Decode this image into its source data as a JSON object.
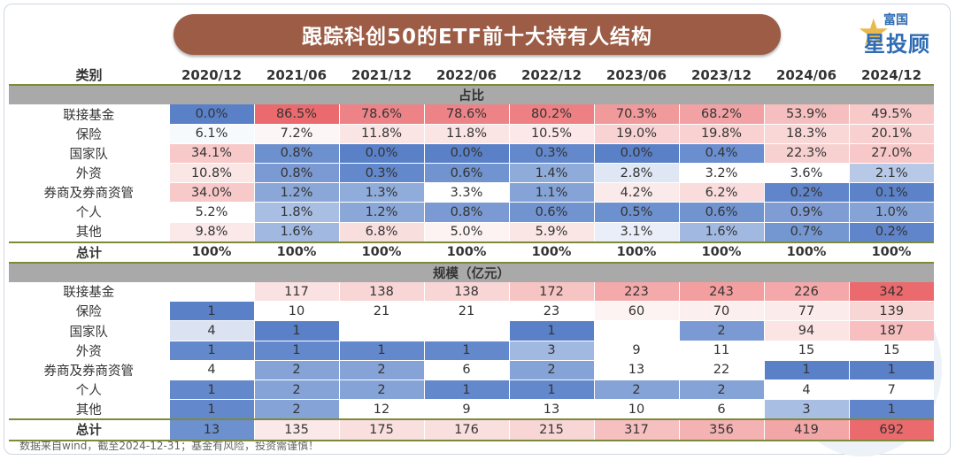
{
  "title": "跟踪科创50的ETF前十大持有人结构",
  "logo": {
    "small": "富国",
    "big": "星投顾"
  },
  "header": {
    "category_label": "类别",
    "periods": [
      "2020/12",
      "2021/06",
      "2021/12",
      "2022/06",
      "2022/12",
      "2023/06",
      "2023/12",
      "2024/06",
      "2024/12"
    ]
  },
  "sections": [
    {
      "title": "占比",
      "rows": [
        {
          "label": "联接基金",
          "values": [
            "0.0%",
            "86.5%",
            "78.6%",
            "78.6%",
            "80.2%",
            "70.3%",
            "68.2%",
            "53.9%",
            "49.5%"
          ],
          "colors": [
            "#5a80c8",
            "#ea6a6e",
            "#ee8387",
            "#ee8387",
            "#ee7f83",
            "#f19a9b",
            "#f2a2a4",
            "#f6bfbf",
            "#f8c9c9"
          ]
        },
        {
          "label": "保险",
          "values": [
            "6.1%",
            "7.2%",
            "11.8%",
            "11.8%",
            "10.5%",
            "19.0%",
            "19.8%",
            "18.3%",
            "20.1%"
          ],
          "colors": [
            "#f7fafd",
            "#fdf6f6",
            "#fbe4e4",
            "#fbe4e4",
            "#fce8e8",
            "#f9d3d3",
            "#f9d1d1",
            "#fad7d7",
            "#f9d0d0"
          ]
        },
        {
          "label": "国家队",
          "values": [
            "34.1%",
            "0.8%",
            "0.0%",
            "0.0%",
            "0.3%",
            "0.0%",
            "0.4%",
            "22.3%",
            "27.0%"
          ],
          "colors": [
            "#f8c9c9",
            "#6d90cf",
            "#5a80c8",
            "#5a80c8",
            "#6388cb",
            "#5a80c8",
            "#6a8ecf",
            "#f7d0d0",
            "#f8c8c8"
          ]
        },
        {
          "label": "外资",
          "values": [
            "10.8%",
            "0.8%",
            "0.3%",
            "0.6%",
            "1.4%",
            "2.8%",
            "3.2%",
            "3.6%",
            "2.1%"
          ],
          "colors": [
            "#fbe6e6",
            "#7b9ad3",
            "#6388cb",
            "#7193d0",
            "#8fabd9",
            "#dfe6f4",
            "#ffffff",
            "#ffffff",
            "#b8c9e8"
          ]
        },
        {
          "label": "券商及券商资管",
          "values": [
            "34.0%",
            "1.2%",
            "1.3%",
            "3.3%",
            "1.1%",
            "4.2%",
            "6.2%",
            "0.2%",
            "0.1%"
          ],
          "colors": [
            "#f8c9c9",
            "#8aa7d8",
            "#90acda",
            "#ffffff",
            "#85a3d6",
            "#fbeaea",
            "#fadcdc",
            "#6085ca",
            "#5c83c9"
          ]
        },
        {
          "label": "个人",
          "values": [
            "5.2%",
            "1.8%",
            "1.2%",
            "0.8%",
            "0.6%",
            "0.5%",
            "0.6%",
            "0.9%",
            "1.0%"
          ],
          "colors": [
            "#ffffff",
            "#a9bee3",
            "#8aa7d8",
            "#7b9ad3",
            "#7193d0",
            "#6d90cf",
            "#7193d0",
            "#7f9dd4",
            "#85a3d6"
          ]
        },
        {
          "label": "其他",
          "values": [
            "9.8%",
            "1.6%",
            "6.8%",
            "5.0%",
            "5.9%",
            "3.1%",
            "1.6%",
            "0.7%",
            "0.2%"
          ],
          "colors": [
            "#fbe8e8",
            "#a1b8e0",
            "#f9dede",
            "#fdf3f3",
            "#fbe6e6",
            "#e9eef8",
            "#a1b8e0",
            "#7597d1",
            "#6085ca"
          ]
        }
      ],
      "total": {
        "label": "总计",
        "values": [
          "100%",
          "100%",
          "100%",
          "100%",
          "100%",
          "100%",
          "100%",
          "100%",
          "100%"
        ]
      }
    },
    {
      "title": "规模（亿元）",
      "rows": [
        {
          "label": "联接基金",
          "values": [
            "",
            "117",
            "138",
            "138",
            "172",
            "223",
            "243",
            "226",
            "342"
          ],
          "colors": [
            "#ffffff",
            "#fbe2e2",
            "#f9d6d6",
            "#f9d6d6",
            "#f7c4c4",
            "#f4a9aa",
            "#f39e9f",
            "#f4a8a9",
            "#ea6a6e"
          ]
        },
        {
          "label": "保险",
          "values": [
            "1",
            "10",
            "21",
            "21",
            "23",
            "60",
            "70",
            "77",
            "139"
          ],
          "colors": [
            "#5a80c8",
            "#ffffff",
            "#ffffff",
            "#ffffff",
            "#ffffff",
            "#fdf3f3",
            "#fcefef",
            "#fcebeb",
            "#f9d6d6"
          ]
        },
        {
          "label": "国家队",
          "values": [
            "4",
            "1",
            "",
            "",
            "1",
            "",
            "2",
            "94",
            "187"
          ],
          "colors": [
            "#dbe3f3",
            "#5a80c8",
            "#ffffff",
            "#ffffff",
            "#5a80c8",
            "#ffffff",
            "#7b9ad3",
            "#fbe4e4",
            "#f7bfc0"
          ]
        },
        {
          "label": "外资",
          "values": [
            "1",
            "1",
            "1",
            "1",
            "3",
            "9",
            "11",
            "15",
            "15"
          ],
          "colors": [
            "#6388cb",
            "#6388cb",
            "#6388cb",
            "#6388cb",
            "#a1b8e0",
            "#ffffff",
            "#ffffff",
            "#ffffff",
            "#ffffff"
          ]
        },
        {
          "label": "券商及券商资管",
          "values": [
            "4",
            "2",
            "2",
            "6",
            "2",
            "13",
            "22",
            "1",
            "1"
          ],
          "colors": [
            "#ffffff",
            "#85a3d6",
            "#85a3d6",
            "#ffffff",
            "#85a3d6",
            "#ffffff",
            "#ffffff",
            "#5a80c8",
            "#5a80c8"
          ]
        },
        {
          "label": "个人",
          "values": [
            "1",
            "2",
            "2",
            "1",
            "1",
            "2",
            "2",
            "4",
            "7"
          ],
          "colors": [
            "#6388cb",
            "#85a3d6",
            "#85a3d6",
            "#6388cb",
            "#6388cb",
            "#85a3d6",
            "#85a3d6",
            "#ffffff",
            "#ffffff"
          ]
        },
        {
          "label": "其他",
          "values": [
            "1",
            "2",
            "12",
            "9",
            "13",
            "10",
            "6",
            "3",
            "1"
          ],
          "colors": [
            "#6388cb",
            "#85a3d6",
            "#ffffff",
            "#ffffff",
            "#ffffff",
            "#ffffff",
            "#ffffff",
            "#a9bee3",
            "#6085ca"
          ]
        }
      ],
      "total": {
        "label": "总计",
        "values": [
          "13",
          "135",
          "175",
          "176",
          "215",
          "317",
          "356",
          "419",
          "692"
        ],
        "colors": [
          "#6d90cf",
          "#fbe8e8",
          "#fadfdf",
          "#fadfdf",
          "#f9d6d6",
          "#f6c0c1",
          "#f4b2b3",
          "#f3a6a7",
          "#ea6a6e"
        ]
      }
    }
  ],
  "footnote": "数据来自wind，截至2024-12-31；基金有风险，投资需谨慎！"
}
